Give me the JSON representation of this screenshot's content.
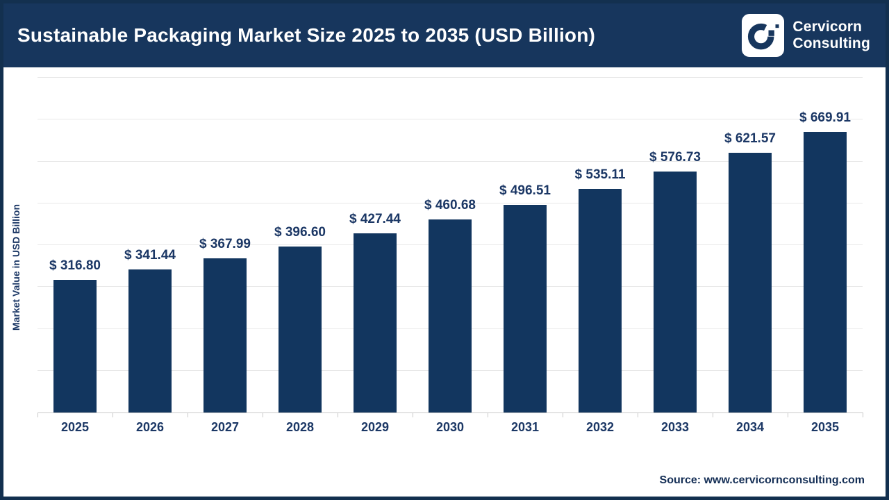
{
  "header": {
    "title": "Sustainable Packaging Market Size 2025 to 2035 (USD Billion)",
    "brand": {
      "line1": "Cervicorn",
      "line2": "Consulting"
    }
  },
  "chart_data": {
    "type": "bar",
    "title": "Sustainable Packaging Market Size 2025 to 2035 (USD Billion)",
    "categories": [
      "2025",
      "2026",
      "2027",
      "2028",
      "2029",
      "2030",
      "2031",
      "2032",
      "2033",
      "2034",
      "2035"
    ],
    "values": [
      316.8,
      341.44,
      367.99,
      396.6,
      427.44,
      460.68,
      496.51,
      535.11,
      576.73,
      621.57,
      669.91
    ],
    "value_prefix": "$ ",
    "xlabel": "",
    "ylabel": "Market Value in USD Billion",
    "ylim": [
      0,
      800
    ],
    "grid_step": 100,
    "grid": true,
    "legend": false,
    "bar_color": "#12365f",
    "label_color": "#1b3765",
    "header_color": "#17365d"
  },
  "footer": {
    "source": "Source: www.cervicornconsulting.com"
  }
}
